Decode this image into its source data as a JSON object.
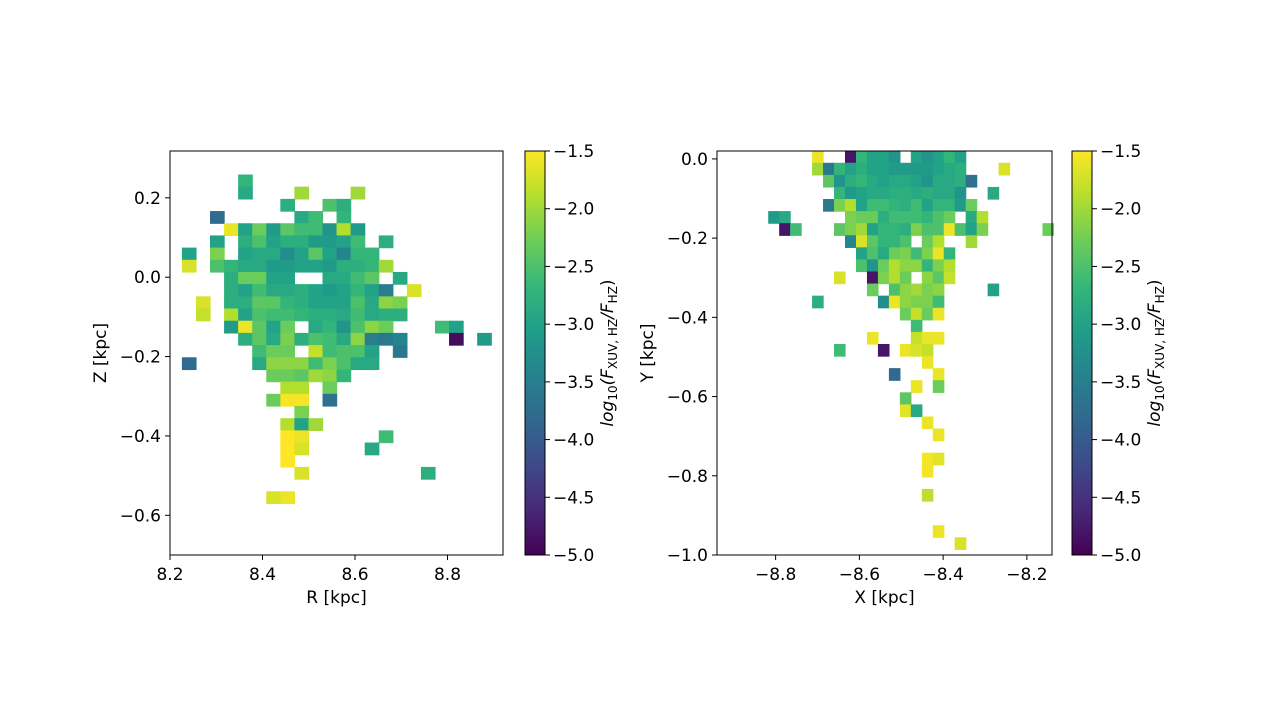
{
  "colorbar": {
    "range": [
      -5.0,
      -1.5
    ],
    "ticks": [
      -1.5,
      -2.0,
      -2.5,
      -3.0,
      -3.5,
      -4.0,
      -4.5,
      -5.0
    ],
    "colormap": "viridis",
    "label_parts": [
      "log",
      "10",
      "(F",
      "XUV, HZ",
      "/F",
      "HZ",
      ")"
    ]
  },
  "chart_data": [
    {
      "type": "heatmap",
      "xlabel": "R [kpc]",
      "ylabel": "Z [kpc]",
      "xlim": [
        8.2,
        8.92
      ],
      "ylim": [
        -0.7,
        0.318
      ],
      "xticks": [
        8.2,
        8.4,
        8.6,
        8.8
      ],
      "yticks": [
        0.2,
        0.0,
        -0.2,
        -0.4,
        -0.6
      ],
      "x_bins": {
        "start": 8.196,
        "width": 0.0304
      },
      "y_bins": {
        "top": 0.258,
        "height": 0.0307
      },
      "z_rows": [
        {
          "5": -2.7
        },
        {
          "5": -2.9,
          "9": -2.0,
          "13": -2.0
        },
        {
          "8": -2.8,
          "11": -2.5,
          "12": -2.8
        },
        {
          "3": -3.8,
          "9": -2.9,
          "10": -2.6,
          "12": -2.7
        },
        {
          "4": -1.6,
          "5": -3.0,
          "6": -2.3,
          "7": -3.1,
          "8": -2.4,
          "9": -2.6,
          "10": -2.6,
          "11": -3.2,
          "12": -1.9,
          "13": -3.1
        },
        {
          "3": -3.0,
          "5": -2.8,
          "6": -2.5,
          "7": -3.0,
          "8": -2.8,
          "9": -2.8,
          "10": -3.1,
          "11": -3.1,
          "12": -3.0,
          "13": -2.6,
          "15": -2.8
        },
        {
          "1": -3.0,
          "3": -2.2,
          "5": -3.0,
          "6": -2.9,
          "7": -2.9,
          "8": -3.3,
          "9": -3.0,
          "10": -2.4,
          "11": -3.0,
          "12": -3.4,
          "13": -2.7,
          "14": -2.7
        },
        {
          "1": -1.7,
          "3": -2.5,
          "4": -2.7,
          "5": -2.9,
          "6": -2.9,
          "7": -3.1,
          "8": -3.1,
          "9": -3.0,
          "10": -3.0,
          "11": -3.1,
          "12": -2.8,
          "13": -2.8,
          "14": -2.7,
          "15": -2.0
        },
        {
          "4": -2.8,
          "5": -2.3,
          "6": -2.3,
          "7": -3.0,
          "8": -3.0,
          "11": -2.9,
          "12": -2.9,
          "13": -2.6,
          "14": -2.4,
          "16": -2.9
        },
        {
          "4": -2.8,
          "5": -3.0,
          "6": -2.6,
          "7": -2.9,
          "8": -2.9,
          "9": -2.8,
          "10": -3.0,
          "11": -3.1,
          "12": -3.0,
          "13": -2.7,
          "14": -3.0,
          "15": -3.5,
          "17": -1.7
        },
        {
          "2": -1.7,
          "4": -2.8,
          "5": -2.8,
          "6": -2.4,
          "7": -2.4,
          "8": -2.7,
          "9": -2.8,
          "10": -3.0,
          "11": -3.0,
          "12": -3.0,
          "13": -2.5,
          "14": -2.9,
          "15": -2.1,
          "16": -2.2
        },
        {
          "2": -1.8,
          "4": -1.9,
          "5": -3.0,
          "6": -2.5,
          "7": -2.6,
          "8": -2.6,
          "9": -2.7,
          "10": -2.8,
          "11": -2.8,
          "12": -2.9,
          "13": -2.6,
          "14": -2.9,
          "15": -2.8,
          "16": -2.8
        },
        {
          "4": -3.1,
          "5": -1.6,
          "6": -2.4,
          "7": -3.0,
          "8": -2.3,
          "10": -2.9,
          "11": -2.7,
          "12": -3.2,
          "13": -2.5,
          "14": -2.1,
          "15": -2.3,
          "19": -2.6,
          "20": -3.0
        },
        {
          "5": -2.8,
          "6": -2.4,
          "7": -2.9,
          "8": -2.2,
          "9": -2.8,
          "10": -2.5,
          "11": -2.6,
          "12": -2.9,
          "13": -2.1,
          "14": -3.5,
          "15": -3.6,
          "16": -3.4,
          "20": -4.9,
          "22": -3.1
        },
        {
          "6": -2.6,
          "7": -2.3,
          "8": -2.3,
          "10": -1.8,
          "11": -2.6,
          "12": -2.5,
          "13": -2.5,
          "14": -3.0,
          "16": -3.6
        },
        {
          "1": -3.8,
          "6": -2.9,
          "7": -2.1,
          "8": -2.1,
          "9": -2.1,
          "10": -2.6,
          "11": -2.2,
          "12": -2.5,
          "13": -2.9,
          "14": -2.9
        },
        {
          "7": -2.3,
          "8": -2.3,
          "9": -2.4,
          "10": -2.0,
          "11": -2.1,
          "12": -2.7
        },
        {
          "8": -1.9,
          "9": -1.9,
          "11": -2.3
        },
        {
          "7": -2.3,
          "8": -1.55,
          "9": -1.55,
          "11": -3.7
        },
        {
          "9": -2.2
        },
        {
          "8": -1.9,
          "9": -3.0,
          "10": -2.0
        },
        {
          "8": -1.5,
          "9": -1.6,
          "15": -2.6
        },
        {
          "8": -1.5,
          "9": -1.7,
          "14": -2.9
        },
        {
          "8": -1.5
        },
        {
          "9": -1.7,
          "18": -2.8
        },
        {},
        {
          "7": -1.7,
          "8": -1.6
        }
      ]
    },
    {
      "type": "heatmap",
      "xlabel": "X [kpc]",
      "ylabel": "Y [kpc]",
      "xlim": [
        -8.94,
        -8.14
      ],
      "ylim": [
        -1.0,
        0.02
      ],
      "xticks": [
        -8.8,
        -8.6,
        -8.4,
        -8.2
      ],
      "yticks": [
        0.0,
        -0.2,
        -0.4,
        -0.6,
        -0.8,
        -1.0
      ],
      "x_bins": {
        "start": -8.817,
        "width": 0.0262
      },
      "y_bins": {
        "top": 0.02,
        "height": 0.0305
      },
      "z_rows": [
        {
          "4": -1.6,
          "7": -4.8,
          "8": -2.7,
          "9": -3.0,
          "10": -3.0,
          "11": -3.2,
          "13": -3.0,
          "14": -3.2,
          "15": -3.0,
          "16": -2.7,
          "17": -3.0
        },
        {
          "4": -2.0,
          "5": -3.6,
          "6": -2.7,
          "7": -3.0,
          "8": -2.8,
          "9": -3.0,
          "10": -3.0,
          "11": -3.1,
          "12": -3.1,
          "13": -3.1,
          "14": -3.1,
          "15": -3.0,
          "16": -2.9,
          "17": -2.8,
          "21": -1.7
        },
        {
          "5": -2.4,
          "6": -3.2,
          "7": -2.8,
          "8": -2.7,
          "9": -2.9,
          "10": -3.0,
          "11": -2.9,
          "12": -2.9,
          "13": -3.0,
          "14": -3.2,
          "15": -2.9,
          "16": -2.9,
          "17": -2.8,
          "18": -3.7
        },
        {
          "6": -2.7,
          "7": -3.1,
          "8": -3.0,
          "9": -2.9,
          "10": -2.9,
          "11": -2.8,
          "12": -2.8,
          "13": -2.9,
          "14": -2.8,
          "15": -2.9,
          "16": -2.9,
          "17": -3.2,
          "20": -2.9
        },
        {
          "5": -3.6,
          "6": -2.2,
          "7": -1.9,
          "8": -3.0,
          "9": -2.6,
          "10": -2.6,
          "11": -2.7,
          "12": -2.8,
          "13": -2.6,
          "14": -3.0,
          "15": -2.7,
          "16": -2.7,
          "17": -3.1,
          "18": -2.3
        },
        {
          "0": -3.1,
          "1": -2.9,
          "7": -2.2,
          "8": -2.3,
          "9": -2.3,
          "10": -2.8,
          "11": -2.6,
          "12": -2.6,
          "13": -2.6,
          "14": -2.7,
          "15": -2.5,
          "16": -2.3,
          "18": -2.9,
          "19": -1.9
        },
        {
          "1": -4.8,
          "2": -2.6,
          "6": -2.4,
          "7": -2.2,
          "8": -2.0,
          "9": -3.0,
          "10": -2.7,
          "11": -2.7,
          "12": -2.8,
          "13": -2.2,
          "14": -2.5,
          "15": -2.5,
          "16": -1.6,
          "17": -2.5,
          "18": -3.0,
          "19": -2.2,
          "25": -2.3
        },
        {
          "7": -3.4,
          "8": -1.7,
          "9": -2.4,
          "10": -2.7,
          "11": -2.7,
          "12": -2.5,
          "14": -2.3,
          "15": -1.9,
          "18": -2.0
        },
        {
          "8": -3.0,
          "9": -2.5,
          "10": -2.9,
          "11": -2.3,
          "12": -2.2,
          "13": -2.6,
          "14": -2.2,
          "15": -1.6,
          "16": -2.7
        },
        {
          "8": -2.5,
          "9": -3.2,
          "10": -2.3,
          "11": -1.9,
          "12": -2.1,
          "13": -2.1,
          "14": -2.7,
          "15": -2.2,
          "16": -1.9
        },
        {
          "6": -1.7,
          "9": -4.8,
          "10": -2.2,
          "11": -1.9,
          "12": -2.3,
          "14": -2.1,
          "15": -2.4,
          "16": -1.8
        },
        {
          "9": -2.3,
          "11": -2.5,
          "12": -2.1,
          "13": -2.0,
          "14": -2.2,
          "15": -2.1,
          "20": -3.0
        },
        {
          "4": -2.8,
          "10": -3.3,
          "11": -1.6,
          "12": -2.1,
          "13": -2.2,
          "14": -2.2,
          "15": -2.6
        },
        {
          "12": -2.3,
          "13": -1.8,
          "14": -2.3,
          "15": -1.6
        },
        {
          "13": -2.6
        },
        {
          "9": -1.6,
          "13": -1.8,
          "14": -1.6,
          "15": -1.6
        },
        {
          "6": -2.6,
          "10": -4.8,
          "12": -1.6,
          "13": -1.7,
          "14": -1.8
        },
        {
          "14": -1.6
        },
        {
          "11": -3.8,
          "15": -1.6
        },
        {
          "13": -1.6,
          "15": -2.3
        },
        {
          "12": -2.4
        },
        {
          "12": -1.65,
          "13": -2.9
        },
        {
          "14": -1.6
        },
        {
          "15": -1.6
        },
        {},
        {
          "14": -1.55,
          "15": -1.65
        },
        {
          "14": -1.55
        },
        {},
        {
          "14": -1.85
        },
        {},
        {},
        {
          "15": -1.6
        },
        {
          "17": -1.7
        }
      ]
    }
  ]
}
